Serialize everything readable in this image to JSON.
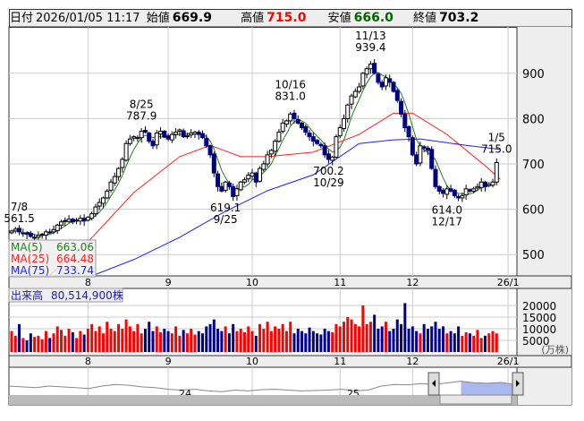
{
  "header": {
    "date_label": "日付",
    "datetime": "2026/01/05 11:17",
    "open_label": "始値",
    "open": "669.9",
    "high_label": "高値",
    "high": "715.0",
    "low_label": "安値",
    "low": "666.0",
    "close_label": "終値",
    "close": "703.2"
  },
  "colors": {
    "up_candle": "#ffffff",
    "down_candle": "#000080",
    "ma5": "#208020",
    "ma25": "#ff2020",
    "ma75": "#2020ff",
    "vol_up": "#ff0000",
    "vol_down": "#000090",
    "high_text": "#ff0000",
    "low_text": "#006000"
  },
  "legend": {
    "ma5_label": "MA(5)",
    "ma5": "663.06",
    "ma25_label": "MA(25)",
    "ma25": "664.48",
    "ma75_label": "MA(75)",
    "ma75": "733.74"
  },
  "volume_label": "出来高",
  "volume_value": "80,514,900株",
  "volume_unit": "(万株)",
  "navigator": {
    "labels": [
      "24",
      "25"
    ],
    "series": [
      700,
      690,
      680,
      700,
      690,
      680,
      670,
      700,
      720,
      710,
      690,
      680,
      660,
      650,
      660,
      640,
      630,
      650,
      640,
      655,
      660,
      650,
      640,
      645,
      650,
      660,
      640,
      650,
      700,
      720,
      715,
      730,
      720,
      740,
      760,
      740,
      735,
      745,
      720
    ]
  },
  "chart_data": {
    "type": "candlestick",
    "price_ticks": [
      500,
      600,
      700,
      800,
      900
    ],
    "volume_ticks": [
      5000,
      10000,
      15000,
      20000
    ],
    "x_ticks": [
      {
        "label": "8",
        "index": 20
      },
      {
        "label": "9",
        "index": 41
      },
      {
        "label": "10",
        "index": 63
      },
      {
        "label": "11",
        "index": 86
      },
      {
        "label": "12",
        "index": 105
      },
      {
        "label": "26/1",
        "index": 130
      }
    ],
    "closes": [
      552,
      556,
      550,
      548,
      545,
      540,
      538,
      542,
      545,
      550,
      548,
      555,
      565,
      572,
      575,
      578,
      572,
      576,
      580,
      574,
      582,
      590,
      605,
      615,
      625,
      640,
      660,
      672,
      690,
      710,
      745,
      755,
      760,
      758,
      772,
      770,
      750,
      740,
      768,
      772,
      760,
      755,
      765,
      770,
      775,
      760,
      762,
      768,
      770,
      765,
      758,
      740,
      720,
      680,
      650,
      640,
      660,
      650,
      628,
      645,
      660,
      665,
      675,
      680,
      660,
      690,
      700,
      720,
      730,
      750,
      770,
      790,
      795,
      810,
      800,
      790,
      780,
      770,
      760,
      750,
      745,
      740,
      720,
      710,
      715,
      760,
      780,
      800,
      830,
      850,
      860,
      870,
      900,
      910,
      920,
      900,
      880,
      870,
      890,
      880,
      860,
      840,
      810,
      780,
      760,
      720,
      700,
      740,
      735,
      730,
      690,
      650,
      640,
      635,
      645,
      640,
      630,
      625,
      630,
      645,
      640,
      645,
      650,
      660,
      650,
      655,
      660,
      703
    ],
    "first_open": 548,
    "volumes": [
      9000,
      7000,
      12000,
      6000,
      5000,
      8000,
      6500,
      7000,
      5500,
      9000,
      6000,
      8000,
      11000,
      9500,
      7000,
      10000,
      8500,
      6000,
      9000,
      7500,
      10000,
      12000,
      9000,
      11000,
      8000,
      13000,
      10000,
      9000,
      12000,
      10000,
      14000,
      11000,
      9000,
      12000,
      8000,
      10000,
      13000,
      9000,
      11000,
      8500,
      10000,
      9000,
      8000,
      11000,
      7000,
      9500,
      8000,
      10000,
      7500,
      9000,
      8000,
      11000,
      12000,
      14000,
      10000,
      9000,
      11000,
      8000,
      12000,
      9000,
      10000,
      8500,
      11000,
      9000,
      7000,
      12000,
      10000,
      13000,
      9000,
      11000,
      10000,
      12000,
      9000,
      13000,
      8000,
      10000,
      9000,
      8000,
      10500,
      9000,
      8000,
      7500,
      10000,
      9000,
      8500,
      12000,
      11000,
      13000,
      15000,
      14000,
      12000,
      11000,
      20000,
      12000,
      13000,
      16000,
      10000,
      11000,
      13000,
      9000,
      10000,
      14000,
      12000,
      21000,
      10000,
      11000,
      9000,
      8000,
      12000,
      10000,
      11000,
      13000,
      10000,
      11000,
      8000,
      9000,
      8000,
      11000,
      7000,
      8500,
      8000,
      7000,
      9500,
      6000,
      7000,
      8000,
      9000,
      8000
    ],
    "ma5": "computed from closes",
    "ma25": [
      [
        10,
        455
      ],
      [
        20,
        528
      ],
      [
        32,
        637
      ],
      [
        44,
        716
      ],
      [
        52,
        741
      ],
      [
        60,
        716
      ],
      [
        67,
        716
      ],
      [
        79,
        726
      ],
      [
        91,
        765
      ],
      [
        100,
        812
      ],
      [
        105,
        812
      ],
      [
        114,
        765
      ],
      [
        124,
        696
      ],
      [
        128,
        666
      ]
    ],
    "ma75": [
      [
        21,
        453
      ],
      [
        32,
        489
      ],
      [
        44,
        538
      ],
      [
        55,
        591
      ],
      [
        67,
        641
      ],
      [
        79,
        676
      ],
      [
        91,
        745
      ],
      [
        100,
        753
      ],
      [
        107,
        755
      ],
      [
        119,
        741
      ],
      [
        128,
        732
      ]
    ],
    "annotations": [
      {
        "index": 2,
        "date": "7/8",
        "value": "561.5",
        "pos": "above",
        "price": 561.5
      },
      {
        "index": 34,
        "date": "8/25",
        "value": "787.9",
        "pos": "above",
        "price": 787.9
      },
      {
        "index": 56,
        "date": "9/25",
        "value": "619.1",
        "pos": "below",
        "price": 619.1
      },
      {
        "index": 73,
        "date": "10/16",
        "value": "831.0",
        "pos": "above",
        "price": 831
      },
      {
        "index": 83,
        "date": "10/29",
        "value": "700.2",
        "pos": "below",
        "price": 700.2
      },
      {
        "index": 94,
        "date": "11/13",
        "value": "939.4",
        "pos": "above",
        "price": 939.4
      },
      {
        "index": 114,
        "date": "12/17",
        "value": "614.0",
        "pos": "below",
        "price": 614
      },
      {
        "index": 127,
        "date": "1/5",
        "value": "715.0",
        "pos": "above",
        "price": 715
      }
    ]
  }
}
